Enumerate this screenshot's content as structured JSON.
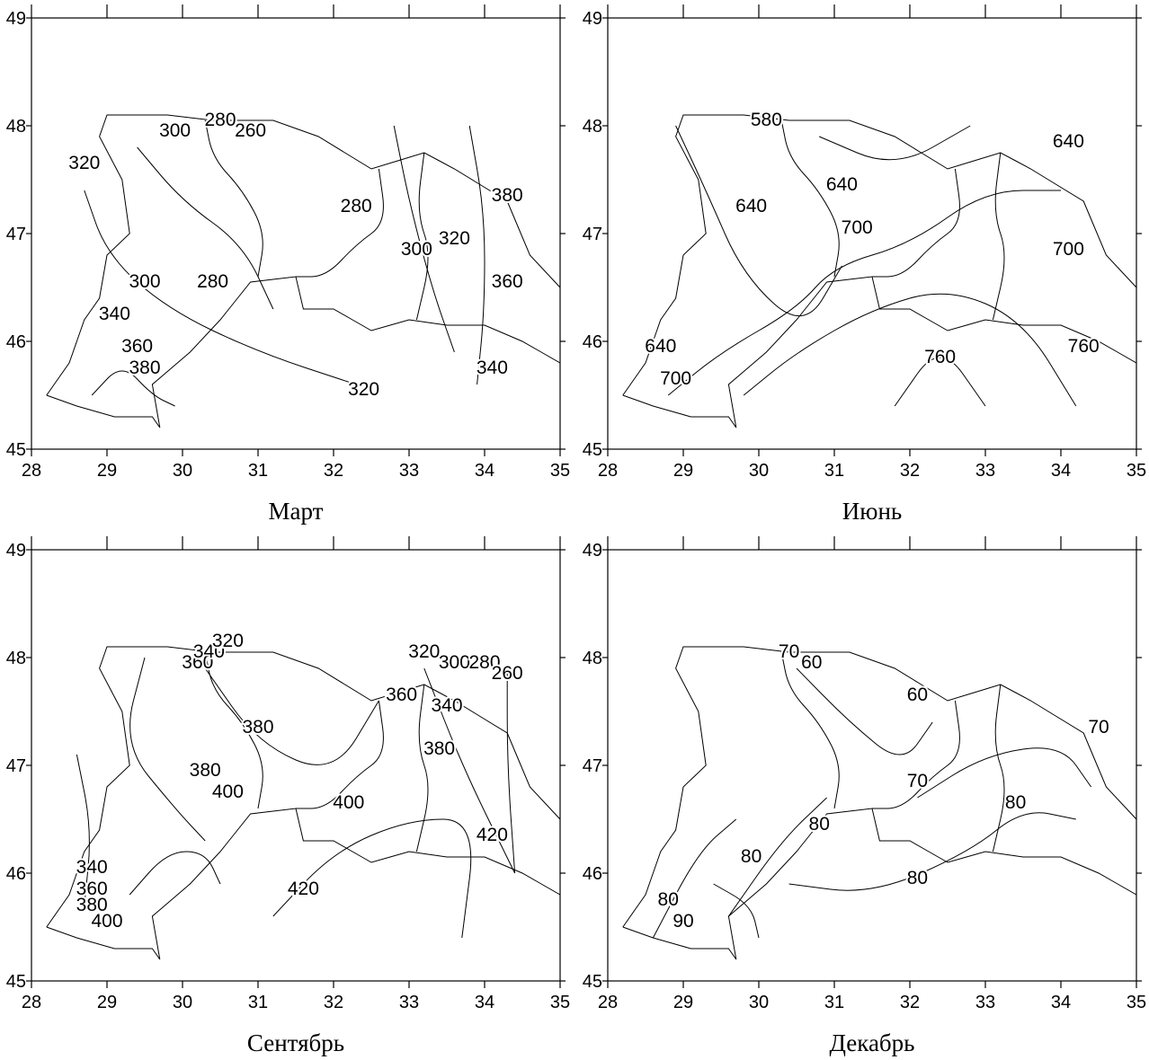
{
  "panels": [
    {
      "title": "Март",
      "xlim": [
        28,
        35
      ],
      "ylim": [
        45,
        49
      ],
      "xticks": [
        28,
        29,
        30,
        31,
        32,
        33,
        34,
        35
      ],
      "yticks": [
        45,
        46,
        47,
        48,
        49
      ],
      "contour_labels": [
        320,
        300,
        280,
        260,
        280,
        300,
        320,
        380,
        360,
        280,
        300,
        340,
        360,
        380,
        340,
        320
      ]
    },
    {
      "title": "Июнь",
      "xlim": [
        28,
        35
      ],
      "ylim": [
        45,
        49
      ],
      "xticks": [
        28,
        29,
        30,
        31,
        32,
        33,
        34,
        35
      ],
      "yticks": [
        45,
        46,
        47,
        48,
        49
      ],
      "contour_labels": [
        580,
        640,
        640,
        700,
        640,
        700,
        760,
        760,
        640,
        700
      ]
    },
    {
      "title": "Сентябрь",
      "xlim": [
        28,
        35
      ],
      "ylim": [
        45,
        49
      ],
      "xticks": [
        28,
        29,
        30,
        31,
        32,
        33,
        34,
        35
      ],
      "yticks": [
        45,
        46,
        47,
        48,
        49
      ],
      "contour_labels": [
        340,
        360,
        380,
        400,
        380,
        400,
        360,
        340,
        320,
        380,
        360,
        340,
        380,
        400,
        420,
        420,
        320,
        300,
        280,
        260
      ]
    },
    {
      "title": "Декабрь",
      "xlim": [
        28,
        35
      ],
      "ylim": [
        45,
        49
      ],
      "xticks": [
        28,
        29,
        30,
        31,
        32,
        33,
        34,
        35
      ],
      "yticks": [
        45,
        46,
        47,
        48,
        49
      ],
      "contour_labels": [
        70,
        60,
        60,
        70,
        70,
        80,
        80,
        80,
        80,
        80,
        90
      ]
    }
  ]
}
